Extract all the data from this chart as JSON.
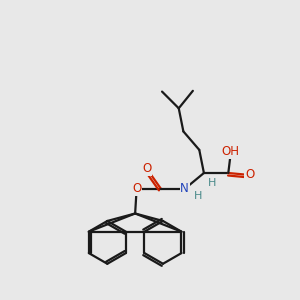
{
  "bg": "#e8e8e8",
  "bc": "#1a1a1a",
  "oc": "#cc2200",
  "nc": "#2244bb",
  "hc": "#4a8a8a",
  "lw": 1.6,
  "fs": 8.5,
  "xlim": [
    0,
    10
  ],
  "ylim": [
    0,
    10
  ],
  "figsize": [
    3.0,
    3.0
  ],
  "dpi": 100
}
